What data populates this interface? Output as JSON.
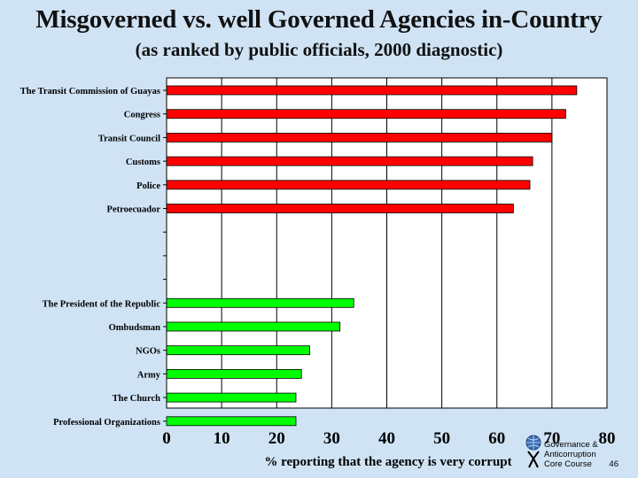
{
  "title": "Misgoverned vs. well Governed Agencies in-Country",
  "subtitle": "(as ranked by public officials, 2000 diagnostic)",
  "chart_data": {
    "type": "bar",
    "orientation": "horizontal",
    "title": "Misgoverned vs. well Governed Agencies in-Country",
    "subtitle": "(as ranked by public officials, 2000 diagnostic)",
    "xlabel": "% reporting that the agency is very corrupt",
    "ylabel": "",
    "xlim": [
      0,
      80
    ],
    "xticks": [
      0,
      10,
      20,
      30,
      40,
      50,
      60,
      70,
      80
    ],
    "grid": true,
    "series": [
      {
        "name": "Misgoverned",
        "color": "#ff0000",
        "categories": [
          "The Transit Commission of Guayas",
          "Congress",
          "Transit Council",
          "Customs",
          "Police",
          "Petroecuador"
        ],
        "values": [
          74.5,
          72.5,
          70,
          66.5,
          66,
          63
        ]
      },
      {
        "name": "Well governed",
        "color": "#00ff00",
        "categories": [
          "The President of the Republic",
          "Ombudsman",
          "NGOs",
          "Army",
          "The Church",
          "Professional Organizations"
        ],
        "values": [
          34,
          31.5,
          26,
          24.5,
          23.5,
          23.5
        ]
      }
    ]
  },
  "footer": {
    "line1": "Governance &",
    "line2": "Anticorruption",
    "line3_text": "Core Course",
    "page": "46"
  }
}
